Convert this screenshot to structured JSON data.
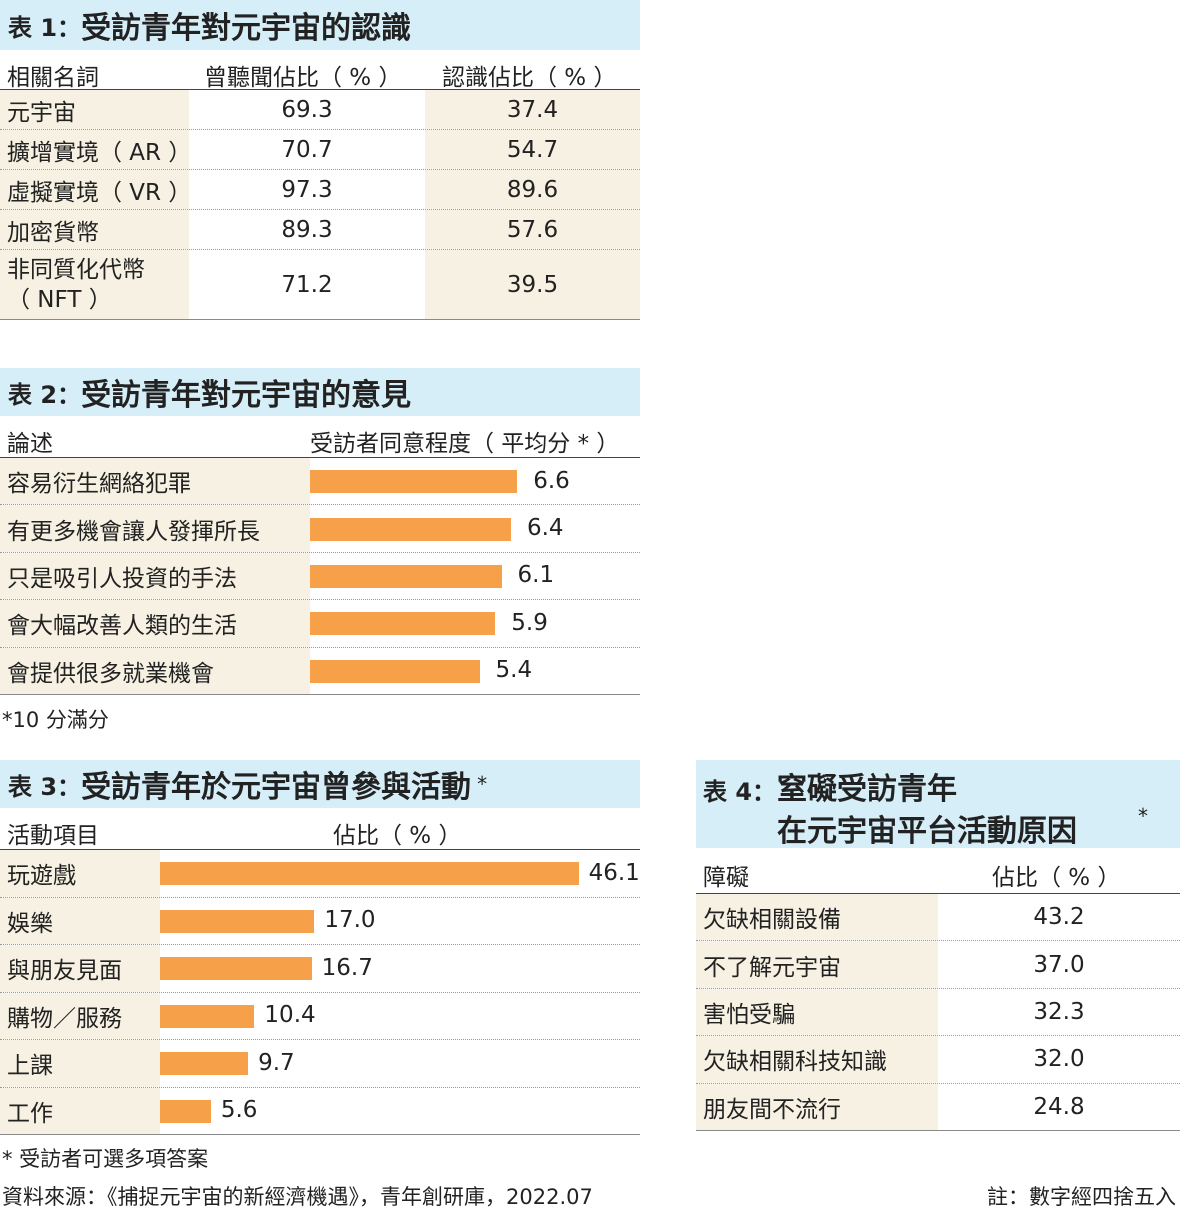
{
  "table1": {
    "title_no": "表 1：",
    "title": "受訪青年對元宇宙的認識",
    "headers": [
      "相關名詞",
      "曾聽聞佔比（ % ）",
      "認識佔比（ % ）"
    ],
    "rows": [
      {
        "label": "元宇宙",
        "heard": "69.3",
        "know": "37.4"
      },
      {
        "label": "擴增實境（ AR ）",
        "heard": "70.7",
        "know": "54.7"
      },
      {
        "label": "虛擬實境（ VR ）",
        "heard": "97.3",
        "know": "89.6"
      },
      {
        "label": "加密貨幣",
        "heard": "89.3",
        "know": "57.6"
      },
      {
        "label": "非同質化代幣",
        "label2": "（ NFT ）",
        "heard": "71.2",
        "know": "39.5"
      }
    ]
  },
  "table2": {
    "title_no": "表 2：",
    "title": "受訪青年對元宇宙的意見",
    "headers": [
      "論述",
      "受訪者同意程度（ 平均分 * ）"
    ],
    "footnote": "*10 分滿分"
  },
  "table3": {
    "title_no": "表 3：",
    "title": "受訪青年於元宇宙曾參與活動",
    "star": "*",
    "headers": [
      "活動項目",
      "佔比（ % ）"
    ],
    "footnote": "* 受訪者可選多項答案"
  },
  "table4": {
    "title_no": "表 4：",
    "title_line1": "窒礙受訪青年",
    "title_line2": "在元宇宙平台活動原因",
    "star": "*",
    "headers": [
      "障礙",
      "佔比（ % ）"
    ],
    "rows": [
      {
        "label": "欠缺相關設備",
        "value": "43.2"
      },
      {
        "label": "不了解元宇宙",
        "value": "37.0"
      },
      {
        "label": "害怕受騙",
        "value": "32.3"
      },
      {
        "label": "欠缺相關科技知識",
        "value": "32.0"
      },
      {
        "label": "朋友間不流行",
        "value": "24.8"
      }
    ]
  },
  "source": "資料來源：《捕捉元宇宙的新經濟機遇》，青年創研庫，2022.07",
  "rounding_note": "註：數字經四捨五入",
  "colors": {
    "bar": "#f7a04a",
    "title_bg": "#d6eef8",
    "label_bg": "#f6f1e2"
  },
  "chart_data": [
    {
      "type": "bar",
      "orientation": "horizontal",
      "title": "受訪青年對元宇宙的意見",
      "xlabel": "受訪者同意程度（ 平均分 * ）",
      "categories": [
        "容易衍生網絡犯罪",
        "有更多機會讓人發揮所長",
        "只是吸引人投資的手法",
        "會大幅改善人類的生活",
        "會提供很多就業機會"
      ],
      "values": [
        6.6,
        6.4,
        6.1,
        5.9,
        5.4
      ],
      "value_labels": [
        "6.6",
        "6.4",
        "6.1",
        "5.9",
        "5.4"
      ]
    },
    {
      "type": "bar",
      "orientation": "horizontal",
      "title": "受訪青年於元宇宙曾參與活動",
      "xlabel": "佔比（ % ）",
      "categories": [
        "玩遊戲",
        "娛樂",
        "與朋友見面",
        "購物／服務",
        "上課",
        "工作"
      ],
      "values": [
        46.1,
        17.0,
        16.7,
        10.4,
        9.7,
        5.6
      ],
      "value_labels": [
        "46.1",
        "17.0",
        "16.7",
        "10.4",
        "9.7",
        "5.6"
      ]
    }
  ]
}
